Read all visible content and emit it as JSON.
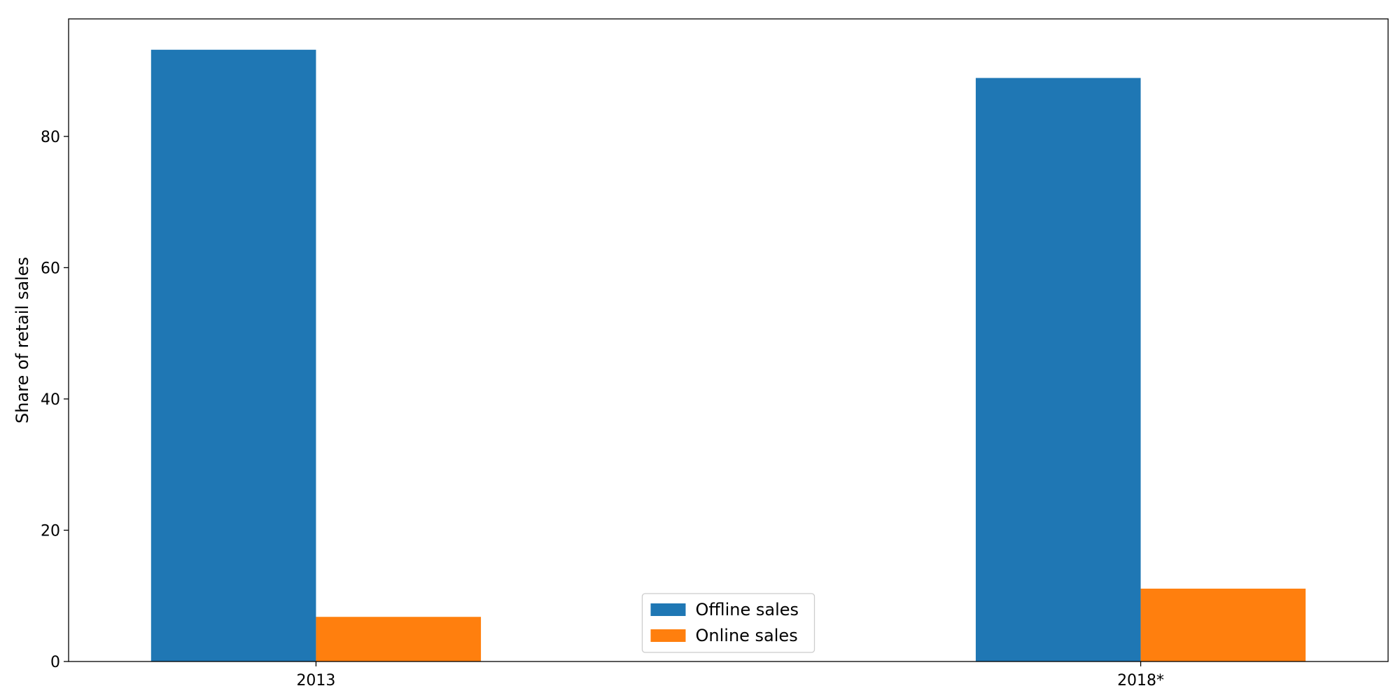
{
  "chart_data": {
    "type": "bar",
    "title": "",
    "xlabel": "",
    "ylabel": "Share of retail sales",
    "categories": [
      "2013",
      "2018*"
    ],
    "series": [
      {
        "name": "Offline sales",
        "values": [
          93.2,
          88.9
        ],
        "color": "#1f77b4"
      },
      {
        "name": "Online sales",
        "values": [
          6.8,
          11.1
        ],
        "color": "#ff7f0e"
      }
    ],
    "ylim": [
      0,
      97.9
    ],
    "yticks": [
      0,
      20,
      40,
      60,
      80
    ],
    "grid": false,
    "legend_position": "bottom-center"
  }
}
